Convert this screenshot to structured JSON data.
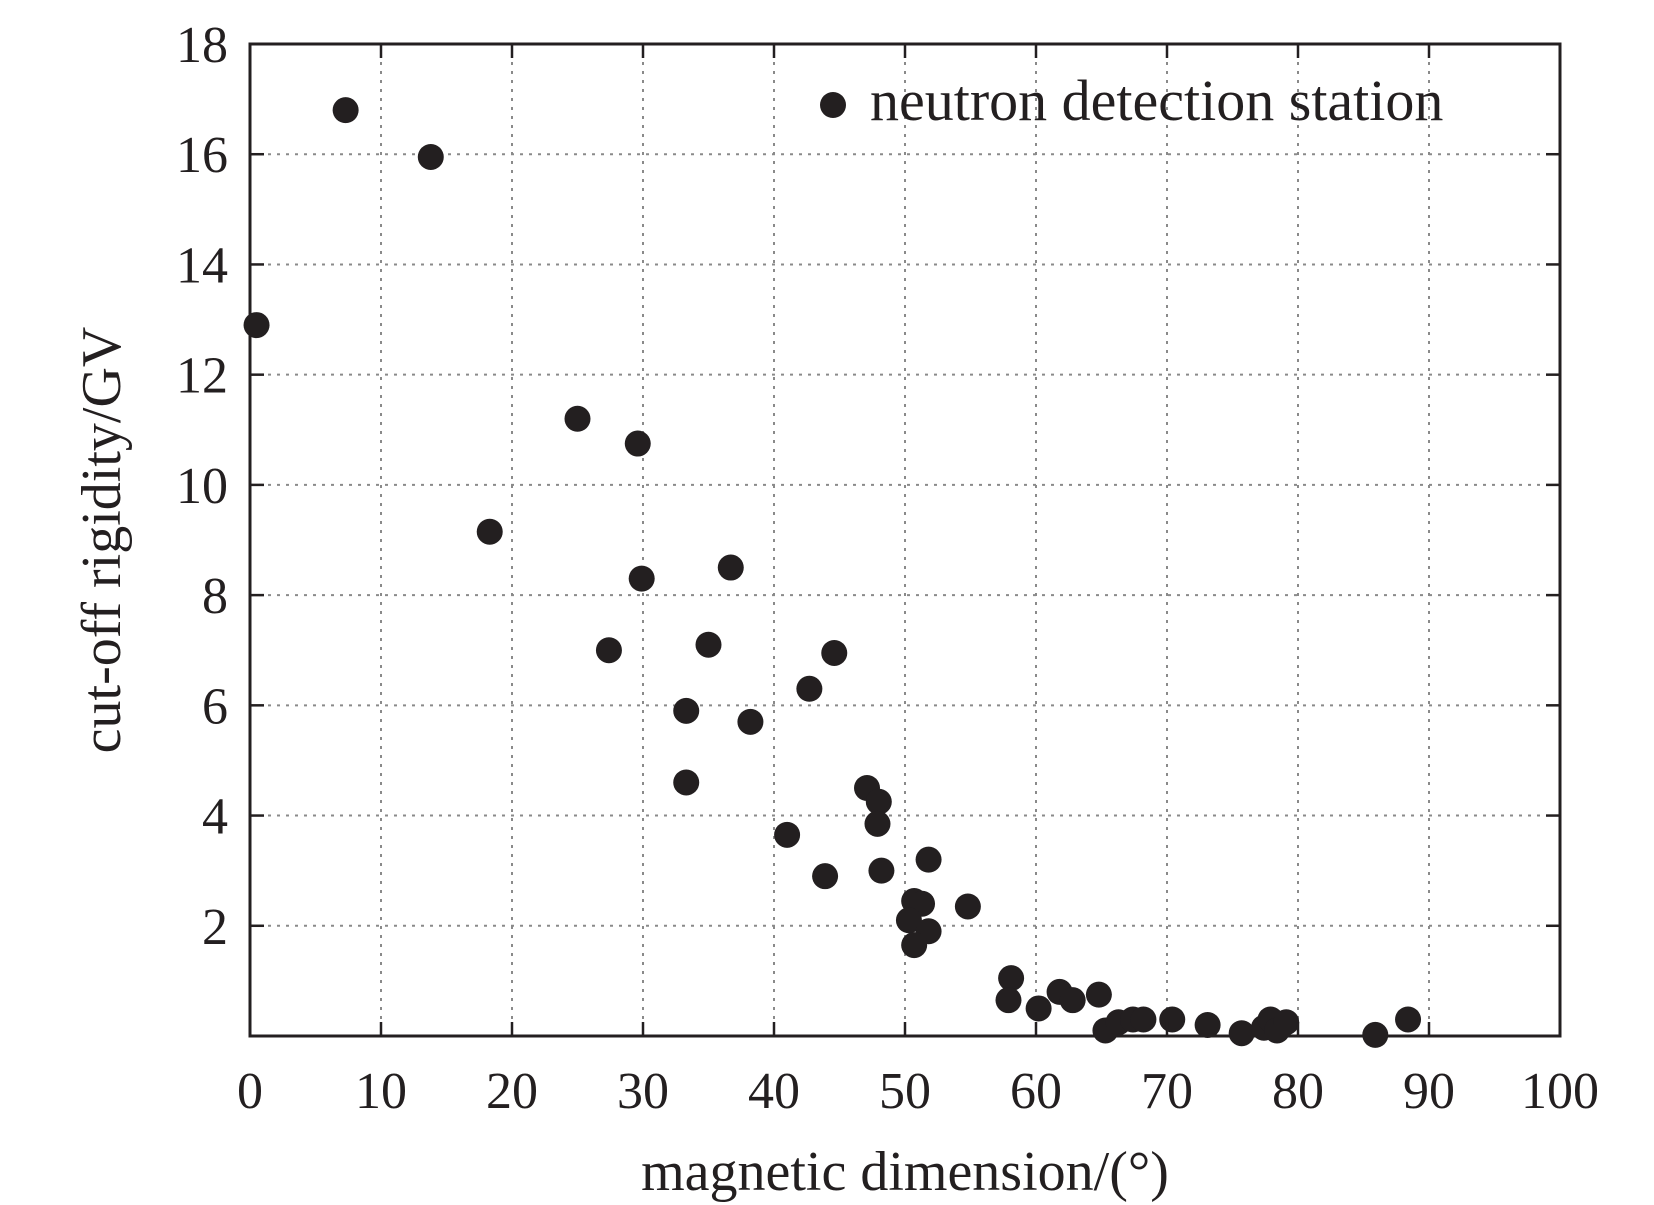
{
  "chart_data": {
    "type": "scatter",
    "title": "",
    "xlabel": "magnetic dimension/(°)",
    "ylabel": "cut-off rigidity/GV",
    "xlim": [
      0,
      100
    ],
    "ylim": [
      0,
      18
    ],
    "x_ticks": [
      "0",
      "10",
      "20",
      "30",
      "40",
      "50",
      "60",
      "70",
      "80",
      "90",
      "100"
    ],
    "y_ticks": [
      "2",
      "4",
      "6",
      "8",
      "10",
      "12",
      "14",
      "16",
      "18"
    ],
    "grid": true,
    "legend_position": "top-right",
    "series": [
      {
        "name": "neutron detection station",
        "color": "#231f20",
        "points": [
          [
            0.5,
            12.9
          ],
          [
            7.3,
            16.8
          ],
          [
            13.8,
            15.95
          ],
          [
            18.3,
            9.15
          ],
          [
            25.0,
            11.2
          ],
          [
            27.4,
            7.0
          ],
          [
            29.6,
            10.75
          ],
          [
            29.9,
            8.3
          ],
          [
            33.3,
            5.9
          ],
          [
            33.3,
            4.6
          ],
          [
            35.0,
            7.1
          ],
          [
            36.7,
            8.5
          ],
          [
            38.2,
            5.7
          ],
          [
            41.0,
            3.65
          ],
          [
            42.7,
            6.3
          ],
          [
            43.9,
            2.9
          ],
          [
            44.6,
            6.95
          ],
          [
            47.1,
            4.5
          ],
          [
            48.0,
            4.25
          ],
          [
            47.9,
            3.85
          ],
          [
            48.2,
            3.0
          ],
          [
            51.8,
            3.2
          ],
          [
            50.7,
            2.45
          ],
          [
            51.3,
            2.4
          ],
          [
            50.3,
            2.1
          ],
          [
            51.8,
            1.9
          ],
          [
            50.7,
            1.65
          ],
          [
            54.8,
            2.35
          ],
          [
            58.1,
            1.05
          ],
          [
            57.9,
            0.65
          ],
          [
            60.2,
            0.5
          ],
          [
            61.8,
            0.8
          ],
          [
            62.8,
            0.65
          ],
          [
            64.8,
            0.75
          ],
          [
            65.3,
            0.1
          ],
          [
            66.3,
            0.25
          ],
          [
            67.4,
            0.3
          ],
          [
            68.2,
            0.3
          ],
          [
            70.4,
            0.3
          ],
          [
            73.1,
            0.2
          ],
          [
            75.7,
            0.05
          ],
          [
            77.4,
            0.15
          ],
          [
            77.9,
            0.3
          ],
          [
            78.4,
            0.1
          ],
          [
            79.1,
            0.25
          ],
          [
            85.9,
            0.02
          ],
          [
            88.4,
            0.3
          ]
        ]
      }
    ]
  }
}
